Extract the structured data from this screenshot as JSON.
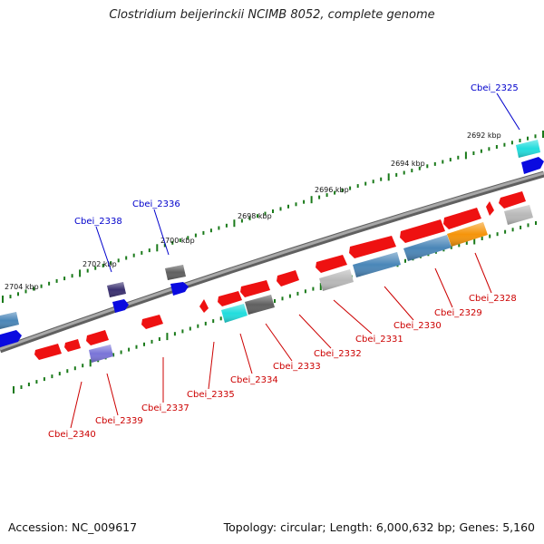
{
  "title": "Clostridium beijerinckii NCIMB 8052, complete genome",
  "footer": {
    "accession": "Accession: NC_009617",
    "topology": "Topology: circular; Length: 6,000,632 bp; Genes: 5,160"
  },
  "scale_labels": [
    "2692 kbp",
    "2694 kbp",
    "2696 kbp",
    "2698 kbp",
    "2700 kbp",
    "2702 kbp",
    "2704 kbp"
  ],
  "gene_labels": [
    {
      "name": "Cbei_2325",
      "strand": "forward",
      "color": "#0000cc"
    },
    {
      "name": "Cbei_2336",
      "strand": "forward",
      "color": "#0000cc"
    },
    {
      "name": "Cbei_2338",
      "strand": "forward",
      "color": "#0000cc"
    },
    {
      "name": "Cbei_2328",
      "strand": "reverse",
      "color": "#cc0000"
    },
    {
      "name": "Cbei_2329",
      "strand": "reverse",
      "color": "#cc0000"
    },
    {
      "name": "Cbei_2330",
      "strand": "reverse",
      "color": "#cc0000"
    },
    {
      "name": "Cbei_2331",
      "strand": "reverse",
      "color": "#cc0000"
    },
    {
      "name": "Cbei_2332",
      "strand": "reverse",
      "color": "#cc0000"
    },
    {
      "name": "Cbei_2333",
      "strand": "reverse",
      "color": "#cc0000"
    },
    {
      "name": "Cbei_2334",
      "strand": "reverse",
      "color": "#cc0000"
    },
    {
      "name": "Cbei_2335",
      "strand": "reverse",
      "color": "#cc0000"
    },
    {
      "name": "Cbei_2337",
      "strand": "reverse",
      "color": "#cc0000"
    },
    {
      "name": "Cbei_2339",
      "strand": "reverse",
      "color": "#cc0000"
    },
    {
      "name": "Cbei_2340",
      "strand": "reverse",
      "color": "#cc0000"
    }
  ],
  "colors": {
    "backbone": "#808080",
    "scale_tick": "#1a7a1a",
    "cds_reverse": "#ee1111",
    "cds_forward": "#0a0ae0",
    "cog_cyan": "#22dddd",
    "cog_steelblue": "#4a86b8",
    "cog_orange": "#f5940a",
    "cog_gray": "#b8b8b8",
    "cog_darkgray": "#606060",
    "cog_indigo": "#3a3070",
    "cog_lavender": "#7a74d8"
  }
}
